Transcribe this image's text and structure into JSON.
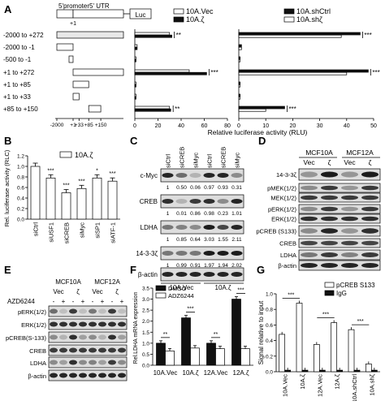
{
  "panels": {
    "A": {
      "letter": "A",
      "diagram": {
        "promoter_label": "5'promoter",
        "utr_label": "5' UTR",
        "tss_label": "+1",
        "reporter_label": "Luc"
      },
      "constructs": [
        "-2000 to +272",
        "-2000 to -1",
        "-500 to -1",
        "+1 to +272",
        "+1 to +85",
        "+1 to +33",
        "+85 to +150"
      ],
      "map_ticks": [
        "-2000",
        "+1",
        "+33",
        "+85",
        "+150"
      ],
      "xlabel": "Relative luciferase activity (RLU)",
      "left_chart": {
        "legend": [
          "10A.Vec",
          "10A.ζ"
        ],
        "ticks": [
          "0",
          "20",
          "40",
          "60",
          "80"
        ],
        "sig": [
          "**",
          "",
          "",
          "***",
          "",
          "",
          "**"
        ]
      },
      "right_chart": {
        "legend": [
          "10A.shCtrl",
          "10A.shζ"
        ],
        "ticks": [
          "0",
          "10",
          "20",
          "30",
          "40",
          "50"
        ],
        "sig": [
          "***",
          "",
          "",
          "***",
          "",
          "",
          "***"
        ]
      }
    },
    "B": {
      "letter": "B",
      "ylabel": "Rel. luciferase activity (RLC)",
      "legend": "10A.ζ",
      "ticks": [
        "0.0",
        "0.2",
        "0.4",
        "0.6",
        "0.8",
        "1.0",
        "1.2"
      ]
    },
    "C": {
      "letter": "C",
      "lanes": [
        "siCtrl",
        "siCREB",
        "siMyc",
        "siCtrl",
        "siCREB",
        "siMyc"
      ],
      "rows": [
        "c-Myc",
        "CREB",
        "LDHA",
        "14-3-3ζ",
        "β-actin"
      ],
      "quant": [
        [
          "1",
          "0.50",
          "0.06",
          "0.97",
          "0.93",
          "0.31"
        ],
        [
          "1",
          "0.01",
          "0.86",
          "0.98",
          "0.23",
          "1.01"
        ],
        [
          "1",
          "0.85",
          "0.64",
          "3.03",
          "1.55",
          "2.11"
        ],
        [
          "1",
          "0.99",
          "0.91",
          "1.97",
          "1.94",
          "2.02"
        ]
      ],
      "groups": [
        "10A.Vec",
        "10A.ζ"
      ]
    },
    "D": {
      "letter": "D",
      "cells": [
        "MCF10A",
        "MCF12A"
      ],
      "lanes": [
        "Vec",
        "ζ",
        "Vec",
        "ζ"
      ],
      "rows": [
        "14-3-3ζ",
        "pMEK(1/2)",
        "MEK(1/2)",
        "pERK(1/2)",
        "ERK(1/2)",
        "pCREB (S133)",
        "CREB",
        "LDHA",
        "β-actin"
      ]
    },
    "E": {
      "letter": "E",
      "cells": [
        "MCF10A",
        "MCF12A"
      ],
      "lanes": [
        "Vec",
        "ζ",
        "Vec",
        "ζ"
      ],
      "drug": "AZD6244",
      "treatment": [
        "-",
        "+",
        "-",
        "+",
        "-",
        "+",
        "-",
        "+"
      ],
      "rows": [
        "pERK(1/2)",
        "ERK(1/2)",
        "pCREB(S-133)",
        "CREB",
        "LDHA",
        "β-actin"
      ]
    },
    "F": {
      "letter": "F",
      "legend": [
        "DMSO",
        "ADZ6244"
      ],
      "ylabel": "Rel.LDHA mRNA expression",
      "ticks": [
        "0.0",
        "0.5",
        "1.0",
        "1.5",
        "2.0",
        "2.5",
        "3.0",
        "3.5"
      ],
      "categories": [
        "10A.Vec",
        "10A.ζ",
        "12A.Vec",
        "12A.ζ"
      ],
      "sig": [
        "**",
        "***",
        "**",
        "***"
      ]
    },
    "G": {
      "letter": "G",
      "legend": [
        "pCREB S133",
        "IgG"
      ],
      "ylabel": "Signal relative to input",
      "ticks": [
        "0.0",
        "0.2",
        "0.4",
        "0.6",
        "0.8",
        "1.0"
      ],
      "categories": [
        "10A.Vec",
        "10A.ζ",
        "12A.Vec",
        "12A.ζ",
        "10A.shCtrl",
        "10A.shζ"
      ],
      "sig": [
        "***",
        "***",
        "***"
      ]
    }
  },
  "chart_data": [
    {
      "type": "bar",
      "title": "",
      "xlabel": "Relative luciferase activity (RLU)",
      "ylabel": "",
      "categories": [
        "-2000 to +272",
        "-2000 to -1",
        "-500 to -1",
        "+1 to +272",
        "+1 to +85",
        "+1 to +33",
        "+85 to +150"
      ],
      "xlim": [
        0,
        80
      ],
      "series": [
        {
          "name": "10A.Vec",
          "values": [
            30,
            2,
            1,
            47,
            1,
            1,
            30
          ]
        },
        {
          "name": "10A.ζ",
          "values": [
            32,
            2,
            1,
            62,
            1,
            1,
            31
          ]
        }
      ]
    },
    {
      "type": "bar",
      "title": "",
      "xlabel": "Relative luciferase activity (RLU)",
      "ylabel": "",
      "categories": [
        "-2000 to +272",
        "-2000 to -1",
        "-500 to -1",
        "+1 to +272",
        "+1 to +85",
        "+1 to +33",
        "+85 to +150"
      ],
      "xlim": [
        0,
        50
      ],
      "series": [
        {
          "name": "10A.shCtrl",
          "values": [
            45,
            1,
            0.5,
            48,
            0.5,
            0.5,
            17
          ]
        },
        {
          "name": "10A.shζ",
          "values": [
            38,
            1,
            0.5,
            40,
            0.5,
            0.5,
            10
          ]
        }
      ]
    },
    {
      "type": "bar",
      "title": "",
      "xlabel": "",
      "ylabel": "Rel. luciferase activity (RLC)",
      "categories": [
        "siCtrl",
        "siUSF1",
        "siCREB",
        "siMyc",
        "siSP1",
        "siATF-1"
      ],
      "ylim": [
        0,
        1.2
      ],
      "series": [
        {
          "name": "10A.ζ",
          "values": [
            1.0,
            0.78,
            0.5,
            0.58,
            0.78,
            0.72
          ]
        }
      ],
      "annotations": [
        "",
        "***",
        "***",
        "***",
        "*",
        "***"
      ]
    },
    {
      "type": "bar",
      "title": "",
      "xlabel": "",
      "ylabel": "Rel.LDHA mRNA expression",
      "categories": [
        "10A.Vec",
        "10A.ζ",
        "12A.Vec",
        "12A.ζ"
      ],
      "ylim": [
        0,
        3.5
      ],
      "series": [
        {
          "name": "DMSO",
          "values": [
            1.0,
            2.15,
            1.0,
            3.0
          ]
        },
        {
          "name": "ADZ6244",
          "values": [
            0.65,
            0.78,
            0.75,
            0.75
          ]
        }
      ]
    },
    {
      "type": "bar",
      "title": "",
      "xlabel": "",
      "ylabel": "Signal relative to input",
      "categories": [
        "10A.Vec",
        "10A.ζ",
        "12A.Vec",
        "12A.ζ",
        "10A.shCtrl",
        "10A.shζ"
      ],
      "ylim": [
        0,
        1.0
      ],
      "series": [
        {
          "name": "pCREB S133",
          "values": [
            0.48,
            0.88,
            0.35,
            0.63,
            0.54,
            0.1
          ]
        },
        {
          "name": "IgG",
          "values": [
            0.02,
            0.02,
            0.02,
            0.02,
            0.02,
            0.02
          ]
        }
      ]
    }
  ]
}
